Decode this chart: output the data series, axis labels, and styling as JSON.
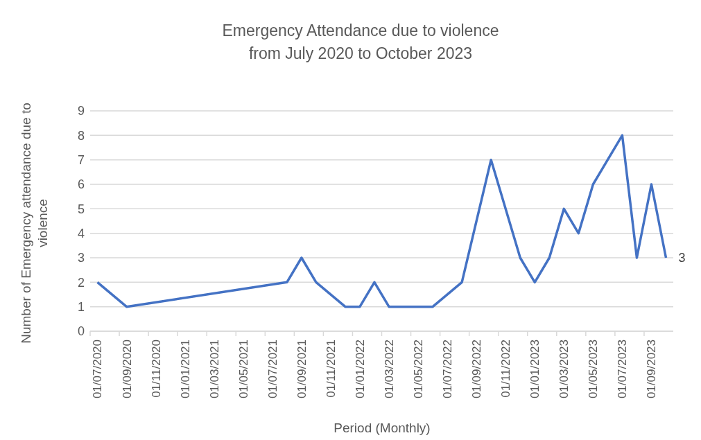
{
  "chart_data": {
    "type": "line",
    "title": "Emergency Attendance due to violence from July 2020 to October 2023",
    "xlabel": "Period (Monthly)",
    "ylabel": "Number of Emergency  attendance due to violence",
    "x": [
      "2020-07",
      "2020-09",
      "2021-08",
      "2021-09",
      "2021-10",
      "2021-12",
      "2022-01",
      "2022-02",
      "2022-03",
      "2022-06",
      "2022-08",
      "2022-10",
      "2022-12",
      "2023-01",
      "2023-02",
      "2023-03",
      "2023-04",
      "2023-05",
      "2023-06",
      "2023-07",
      "2023-08",
      "2023-09",
      "2023-10"
    ],
    "series": [
      {
        "color": "#4472c4",
        "values": [
          2,
          1,
          2,
          3,
          2,
          1,
          1,
          2,
          1,
          1,
          2,
          7,
          3,
          2,
          3,
          5,
          4,
          6,
          7,
          8,
          3,
          6,
          3
        ],
        "value_labels": [
          null,
          null,
          null,
          null,
          null,
          null,
          null,
          null,
          null,
          null,
          null,
          null,
          null,
          null,
          null,
          null,
          null,
          null,
          null,
          null,
          null,
          null,
          "3"
        ]
      }
    ],
    "xlim": [
      "2020-06-16",
      "2023-10-16"
    ],
    "xticks": [
      {
        "value": "2020-07",
        "label": "01/07/2020"
      },
      {
        "value": "2020-09",
        "label": "01/09/2020"
      },
      {
        "value": "2020-11",
        "label": "01/11/2020"
      },
      {
        "value": "2021-01",
        "label": "01/01/2021"
      },
      {
        "value": "2021-03",
        "label": "01/03/2021"
      },
      {
        "value": "2021-05",
        "label": "01/05/2021"
      },
      {
        "value": "2021-07",
        "label": "01/07/2021"
      },
      {
        "value": "2021-09",
        "label": "01/09/2021"
      },
      {
        "value": "2021-11",
        "label": "01/11/2021"
      },
      {
        "value": "2022-01",
        "label": "01/01/2022"
      },
      {
        "value": "2022-03",
        "label": "01/03/2022"
      },
      {
        "value": "2022-05",
        "label": "01/05/2022"
      },
      {
        "value": "2022-07",
        "label": "01/07/2022"
      },
      {
        "value": "2022-09",
        "label": "01/09/2022"
      },
      {
        "value": "2022-11",
        "label": "01/11/2022"
      },
      {
        "value": "2023-01",
        "label": "01/01/2023"
      },
      {
        "value": "2023-03",
        "label": "01/03/2023"
      },
      {
        "value": "2023-05",
        "label": "01/05/2023"
      },
      {
        "value": "2023-07",
        "label": "01/07/2023"
      },
      {
        "value": "2023-09",
        "label": "01/09/2023"
      }
    ],
    "ylim": [
      0,
      9
    ],
    "yticks": [
      0,
      1,
      2,
      3,
      4,
      5,
      6,
      7,
      8,
      9
    ],
    "grid": "y",
    "legend": false,
    "marker": "none",
    "line_style": "solid"
  }
}
